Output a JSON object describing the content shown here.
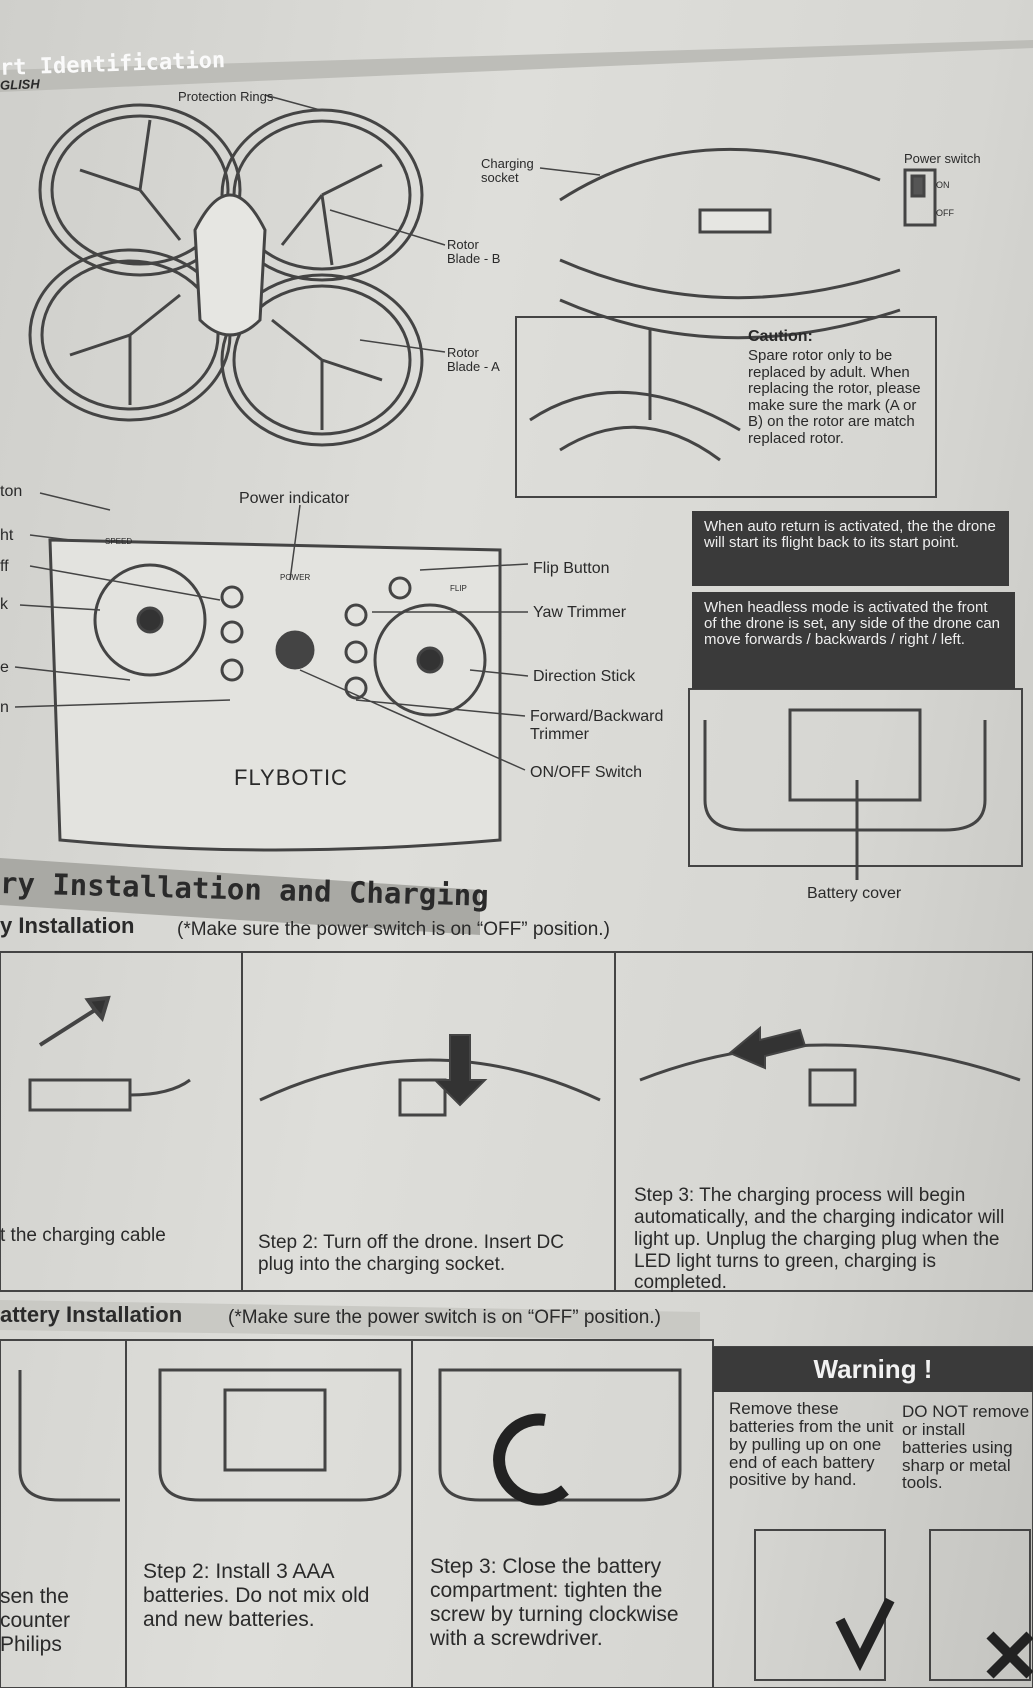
{
  "header": {
    "language": "GLISH",
    "title": "rt Identification"
  },
  "parts": {
    "protection_rings": "Protection Rings",
    "charging_socket": "Charging socket",
    "rotor_b": "Rotor Blade - B",
    "rotor_a": "Rotor Blade - A",
    "power_switch": "Power switch",
    "on": "ON",
    "off": "OFF",
    "caution_title": "Caution:",
    "caution_text": "Spare rotor only to be replaced by adult. When replacing the rotor, please make sure the mark (A or B) on the rotor are match replaced rotor."
  },
  "remote": {
    "left_labels": [
      "ton",
      "ht",
      "ff",
      "k",
      "e",
      "n"
    ],
    "power_indicator": "Power indicator",
    "flip_button": "Flip Button",
    "yaw_trimmer": "Yaw Trimmer",
    "direction_stick": "Direction Stick",
    "fb_trimmer": "Forward/Backward Trimmer",
    "onoff_switch": "ON/OFF Switch",
    "logo": "FLYBOTIC",
    "speed": "SPEED",
    "power": "POWER",
    "flip": "FLIP"
  },
  "notes": {
    "auto_return": "When auto return is activated, the the drone will start its flight back to its start point.",
    "headless": "When headless mode is activated the front of the drone is set, any side of the drone can move forwards / backwards / right / left."
  },
  "battery_cover": "Battery cover",
  "section_title": "ry Installation and Charging",
  "charging": {
    "title": "y Installation",
    "note": "(*Make sure the power switch is on “OFF” position.)",
    "step1": "t the charging cable",
    "step2": "Step 2: Turn off the drone. Insert DC plug into the charging socket.",
    "step3": "Step 3: The charging process will begin automatically, and the charging indicator will light up. Unplug the charging plug when the LED light turns to green, charging is completed."
  },
  "battery": {
    "title": "attery Installation",
    "note": "(*Make sure the power switch is on “OFF” position.)",
    "step1": "sen the counter Philips",
    "step2": "Step 2: Install 3 AAA batteries. Do not mix old and new batteries.",
    "step3": "Step 3: Close the battery compartment: tighten the screw by turning clockwise with a screwdriver."
  },
  "warning": {
    "title": "Warning !",
    "left": "Remove these batteries from the unit by pulling up on one end of each battery positive by hand.",
    "right": "DO NOT remove or install batteries using sharp or metal tools."
  }
}
